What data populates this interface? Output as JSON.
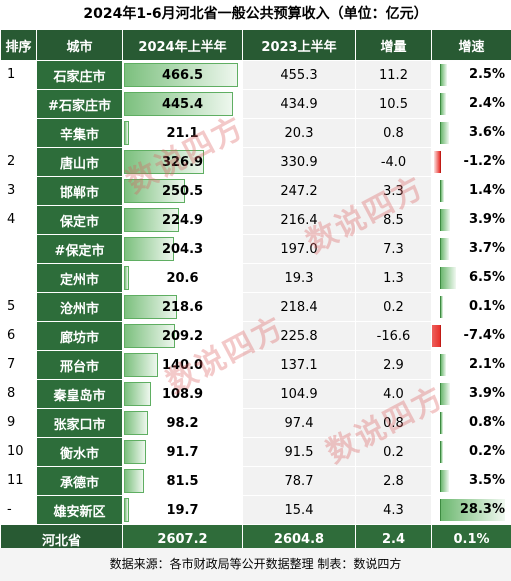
{
  "title": "2024年1-6月河北省一般公共预算收入（单位：亿元）",
  "headers": [
    "排序",
    "城市",
    "2024年上半年",
    "2023上半年",
    "增量",
    "增速"
  ],
  "max_value": 466.5,
  "max_growth": 28.3,
  "rows": [
    {
      "rank": "1",
      "city": "石家庄市",
      "v2024": "466.5",
      "v2023": "455.3",
      "inc": "11.2",
      "rate": "2.5%",
      "val": 466.5,
      "growth": 2.5
    },
    {
      "rank": "",
      "city": "#石家庄市",
      "v2024": "445.4",
      "v2023": "434.9",
      "inc": "10.5",
      "rate": "2.4%",
      "val": 445.4,
      "growth": 2.4
    },
    {
      "rank": "",
      "city": "辛集市",
      "v2024": "21.1",
      "v2023": "20.3",
      "inc": "0.8",
      "rate": "3.6%",
      "val": 21.1,
      "growth": 3.6
    },
    {
      "rank": "2",
      "city": "唐山市",
      "v2024": "326.9",
      "v2023": "330.9",
      "inc": "-4.0",
      "rate": "-1.2%",
      "val": 326.9,
      "growth": -1.2
    },
    {
      "rank": "3",
      "city": "邯郸市",
      "v2024": "250.5",
      "v2023": "247.2",
      "inc": "3.3",
      "rate": "1.4%",
      "val": 250.5,
      "growth": 1.4
    },
    {
      "rank": "4",
      "city": "保定市",
      "v2024": "224.9",
      "v2023": "216.4",
      "inc": "8.5",
      "rate": "3.9%",
      "val": 224.9,
      "growth": 3.9
    },
    {
      "rank": "",
      "city": "#保定市",
      "v2024": "204.3",
      "v2023": "197.0",
      "inc": "7.3",
      "rate": "3.7%",
      "val": 204.3,
      "growth": 3.7
    },
    {
      "rank": "",
      "city": "定州市",
      "v2024": "20.6",
      "v2023": "19.3",
      "inc": "1.3",
      "rate": "6.5%",
      "val": 20.6,
      "growth": 6.5
    },
    {
      "rank": "5",
      "city": "沧州市",
      "v2024": "218.6",
      "v2023": "218.4",
      "inc": "0.2",
      "rate": "0.1%",
      "val": 218.6,
      "growth": 0.1
    },
    {
      "rank": "6",
      "city": "廊坊市",
      "v2024": "209.2",
      "v2023": "225.8",
      "inc": "-16.6",
      "rate": "-7.4%",
      "val": 209.2,
      "growth": -7.4
    },
    {
      "rank": "7",
      "city": "邢台市",
      "v2024": "140.0",
      "v2023": "137.1",
      "inc": "2.9",
      "rate": "2.1%",
      "val": 140.0,
      "growth": 2.1
    },
    {
      "rank": "8",
      "city": "秦皇岛市",
      "v2024": "108.9",
      "v2023": "104.9",
      "inc": "4.0",
      "rate": "3.9%",
      "val": 108.9,
      "growth": 3.9
    },
    {
      "rank": "9",
      "city": "张家口市",
      "v2024": "98.2",
      "v2023": "97.4",
      "inc": "0.8",
      "rate": "0.8%",
      "val": 98.2,
      "growth": 0.8
    },
    {
      "rank": "10",
      "city": "衡水市",
      "v2024": "91.7",
      "v2023": "91.5",
      "inc": "0.2",
      "rate": "0.2%",
      "val": 91.7,
      "growth": 0.2
    },
    {
      "rank": "11",
      "city": "承德市",
      "v2024": "81.5",
      "v2023": "78.7",
      "inc": "2.8",
      "rate": "3.5%",
      "val": 81.5,
      "growth": 3.5
    },
    {
      "rank": "-",
      "city": "雄安新区",
      "v2024": "19.7",
      "v2023": "15.4",
      "inc": "4.3",
      "rate": "28.3%",
      "val": 19.7,
      "growth": 28.3
    }
  ],
  "total": {
    "label": "河北省",
    "v2024": "2607.2",
    "v2023": "2604.8",
    "inc": "2.4",
    "rate": "0.1%"
  },
  "source": "数据来源：各市财政局等公开数据整理   制表：数说四方",
  "watermark": "数说四方",
  "colors": {
    "header_bg": "#285a33",
    "city_bg": "#2d6d3a",
    "bar_green": "#7cc07e",
    "bar_red": "#e8322d"
  }
}
